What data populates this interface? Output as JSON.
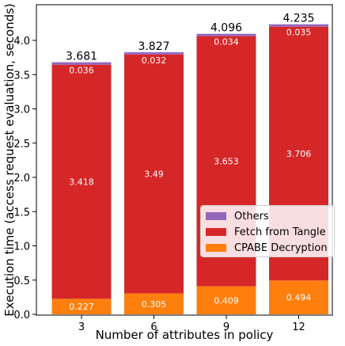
{
  "chart_data": {
    "type": "bar",
    "stacked": true,
    "xlabel": "Number of attributes in policy",
    "ylabel": "Execution time (access request evaluation, seconds)",
    "categories": [
      "3",
      "6",
      "9",
      "12"
    ],
    "ylim": [
      0,
      4.4
    ],
    "yticks": [
      "0.0",
      "0.5",
      "1.0",
      "1.5",
      "2.0",
      "2.5",
      "3.0",
      "3.5",
      "4.0"
    ],
    "series": [
      {
        "name": "CPABE Decryption",
        "values": [
          0.227,
          0.305,
          0.409,
          0.494
        ],
        "labels": [
          "0.227",
          "0.305",
          "0.409",
          "0.494"
        ],
        "color": "#ff7f0e"
      },
      {
        "name": "Fetch from Tangle",
        "values": [
          3.418,
          3.49,
          3.653,
          3.706
        ],
        "labels": [
          "3.418",
          "3.49",
          "3.653",
          "3.706"
        ],
        "color": "#d62728"
      },
      {
        "name": "Others",
        "values": [
          0.036,
          0.032,
          0.034,
          0.035
        ],
        "labels": [
          "0.036",
          "0.032",
          "0.034",
          "0.035"
        ],
        "color": "#9467bd"
      }
    ],
    "totals": [
      "3.681",
      "3.827",
      "4.096",
      "4.235"
    ],
    "legend": {
      "position": "lower-right",
      "entries": [
        {
          "label": "Others",
          "color": "#9467bd"
        },
        {
          "label": "Fetch from Tangle",
          "color": "#d62728"
        },
        {
          "label": "CPABE Decryption",
          "color": "#ff7f0e"
        }
      ]
    },
    "grid": false
  }
}
